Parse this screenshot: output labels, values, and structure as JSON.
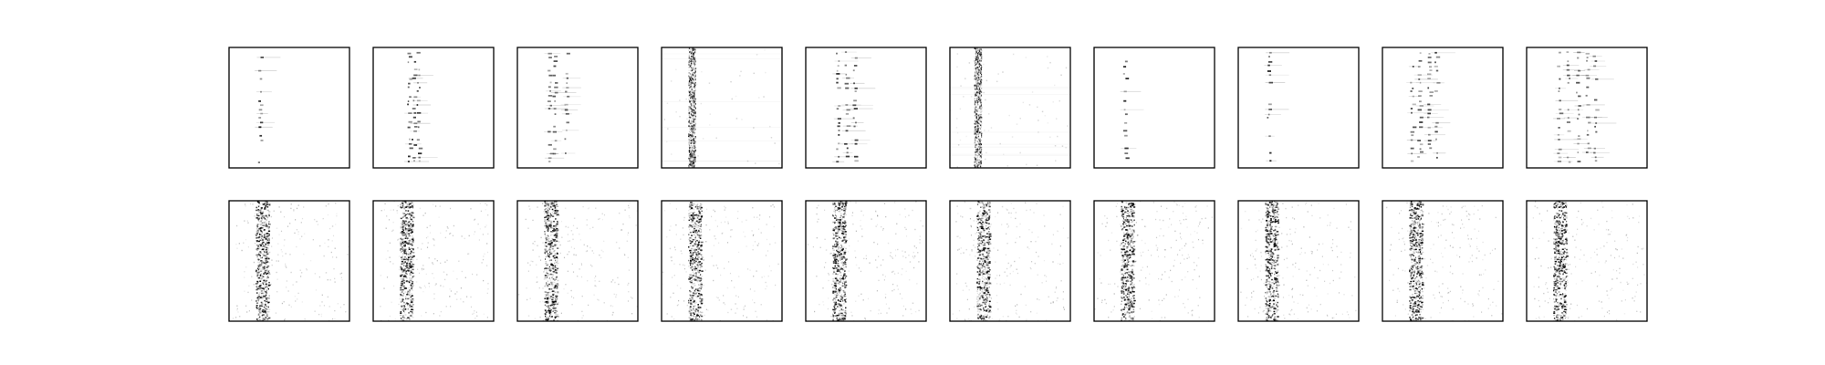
{
  "chart_data": {
    "type": "heatmap",
    "title": "",
    "xlabel": "",
    "ylabel": "",
    "grid": false,
    "legend": "none",
    "layout": {
      "rows": 2,
      "cols": 10
    },
    "colormap": "Greys",
    "value_range": [
      0,
      1
    ],
    "axes_ticks": false,
    "panels": [
      {
        "row": 0,
        "col": 0,
        "pattern": "single-column",
        "columns": [
          0.25
        ],
        "intensity": 0.85,
        "background": 0.0
      },
      {
        "row": 0,
        "col": 1,
        "pattern": "multi-column",
        "columns": [
          0.29,
          0.33,
          0.37
        ],
        "intensity": 0.8,
        "background": 0.0
      },
      {
        "row": 0,
        "col": 2,
        "pattern": "multi-column",
        "columns": [
          0.26,
          0.3,
          0.4
        ],
        "intensity": 0.6,
        "background": 0.0
      },
      {
        "row": 0,
        "col": 3,
        "pattern": "band",
        "columns": [
          0.22,
          0.28
        ],
        "intensity": 0.75,
        "background": 0.05
      },
      {
        "row": 0,
        "col": 4,
        "pattern": "multi-column",
        "columns": [
          0.26,
          0.33,
          0.4
        ],
        "intensity": 0.7,
        "background": 0.0
      },
      {
        "row": 0,
        "col": 5,
        "pattern": "band",
        "columns": [
          0.2,
          0.26
        ],
        "intensity": 0.75,
        "background": 0.08
      },
      {
        "row": 0,
        "col": 6,
        "pattern": "single-column",
        "columns": [
          0.25
        ],
        "intensity": 0.8,
        "background": 0.0
      },
      {
        "row": 0,
        "col": 7,
        "pattern": "single-column",
        "columns": [
          0.25
        ],
        "intensity": 0.85,
        "background": 0.0
      },
      {
        "row": 0,
        "col": 8,
        "pattern": "multi-column",
        "columns": [
          0.24,
          0.3,
          0.38,
          0.44
        ],
        "intensity": 0.7,
        "background": 0.0
      },
      {
        "row": 0,
        "col": 9,
        "pattern": "multi-column",
        "columns": [
          0.26,
          0.34,
          0.42,
          0.5,
          0.56
        ],
        "intensity": 0.6,
        "background": 0.0
      },
      {
        "row": 1,
        "col": 0,
        "pattern": "dense",
        "columns": [
          0.22,
          0.32
        ],
        "intensity": 0.85,
        "background": 0.04
      },
      {
        "row": 1,
        "col": 1,
        "pattern": "dense",
        "columns": [
          0.22,
          0.32
        ],
        "intensity": 0.85,
        "background": 0.04
      },
      {
        "row": 1,
        "col": 2,
        "pattern": "dense",
        "columns": [
          0.22,
          0.32
        ],
        "intensity": 0.85,
        "background": 0.04
      },
      {
        "row": 1,
        "col": 3,
        "pattern": "dense",
        "columns": [
          0.22,
          0.32
        ],
        "intensity": 0.85,
        "background": 0.04
      },
      {
        "row": 1,
        "col": 4,
        "pattern": "dense",
        "columns": [
          0.22,
          0.32
        ],
        "intensity": 0.85,
        "background": 0.04
      },
      {
        "row": 1,
        "col": 5,
        "pattern": "dense",
        "columns": [
          0.22,
          0.32
        ],
        "intensity": 0.85,
        "background": 0.04
      },
      {
        "row": 1,
        "col": 6,
        "pattern": "dense",
        "columns": [
          0.22,
          0.32
        ],
        "intensity": 0.85,
        "background": 0.04
      },
      {
        "row": 1,
        "col": 7,
        "pattern": "dense",
        "columns": [
          0.22,
          0.32
        ],
        "intensity": 0.85,
        "background": 0.04
      },
      {
        "row": 1,
        "col": 8,
        "pattern": "dense",
        "columns": [
          0.22,
          0.32
        ],
        "intensity": 0.85,
        "background": 0.04
      },
      {
        "row": 1,
        "col": 9,
        "pattern": "dense",
        "columns": [
          0.22,
          0.32
        ],
        "intensity": 0.85,
        "background": 0.04
      }
    ]
  },
  "colors": {
    "frame": "#000000",
    "ink": "#000000",
    "background": "#ffffff"
  }
}
